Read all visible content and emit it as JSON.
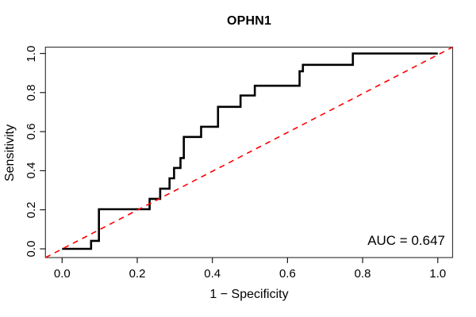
{
  "figure": {
    "title": "OPHN1",
    "xlabel": "1 − Specificity",
    "ylabel": "Sensitivity",
    "auc_label": "AUC = 0.647"
  },
  "chart_data": {
    "type": "line",
    "subtype": "roc-step-curve",
    "title": "OPHN1",
    "xlabel": "1 − Specificity",
    "ylabel": "Sensitivity",
    "xlim": [
      0,
      1
    ],
    "ylim": [
      0,
      1
    ],
    "grid": false,
    "legend_position": "none",
    "x_ticks": [
      0.0,
      0.2,
      0.4,
      0.6,
      0.8,
      1.0
    ],
    "y_ticks": [
      0.0,
      0.2,
      0.4,
      0.6,
      0.8,
      1.0
    ],
    "x_tick_labels": [
      "0.0",
      "0.2",
      "0.4",
      "0.6",
      "0.8",
      "1.0"
    ],
    "y_tick_labels": [
      "0.0",
      "0.2",
      "0.4",
      "0.6",
      "0.8",
      "1.0"
    ],
    "auc": 0.647,
    "annotation": "AUC = 0.647",
    "series": [
      {
        "name": "ROC curve",
        "color": "#000000",
        "style": "solid",
        "width": 2.6,
        "points": [
          [
            0.0,
            0.0
          ],
          [
            0.077,
            0.0
          ],
          [
            0.077,
            0.041
          ],
          [
            0.098,
            0.041
          ],
          [
            0.098,
            0.203
          ],
          [
            0.233,
            0.203
          ],
          [
            0.233,
            0.256
          ],
          [
            0.261,
            0.256
          ],
          [
            0.261,
            0.308
          ],
          [
            0.286,
            0.308
          ],
          [
            0.286,
            0.361
          ],
          [
            0.298,
            0.361
          ],
          [
            0.298,
            0.414
          ],
          [
            0.315,
            0.414
          ],
          [
            0.315,
            0.465
          ],
          [
            0.324,
            0.465
          ],
          [
            0.324,
            0.573
          ],
          [
            0.37,
            0.573
          ],
          [
            0.37,
            0.625
          ],
          [
            0.415,
            0.625
          ],
          [
            0.415,
            0.727
          ],
          [
            0.475,
            0.727
          ],
          [
            0.475,
            0.785
          ],
          [
            0.513,
            0.785
          ],
          [
            0.513,
            0.835
          ],
          [
            0.632,
            0.835
          ],
          [
            0.632,
            0.909
          ],
          [
            0.641,
            0.909
          ],
          [
            0.641,
            0.942
          ],
          [
            0.774,
            0.942
          ],
          [
            0.774,
            1.0
          ],
          [
            1.0,
            1.0
          ]
        ]
      },
      {
        "name": "chance diagonal",
        "color": "#FF0000",
        "style": "dashed",
        "width": 1.6,
        "points": [
          [
            0,
            0
          ],
          [
            1,
            1
          ]
        ]
      }
    ]
  },
  "colors": {
    "curve": "#000000",
    "diagonal": "#FF0000",
    "axis": "#3d3d3d",
    "text": "#000000",
    "background": "#ffffff"
  }
}
